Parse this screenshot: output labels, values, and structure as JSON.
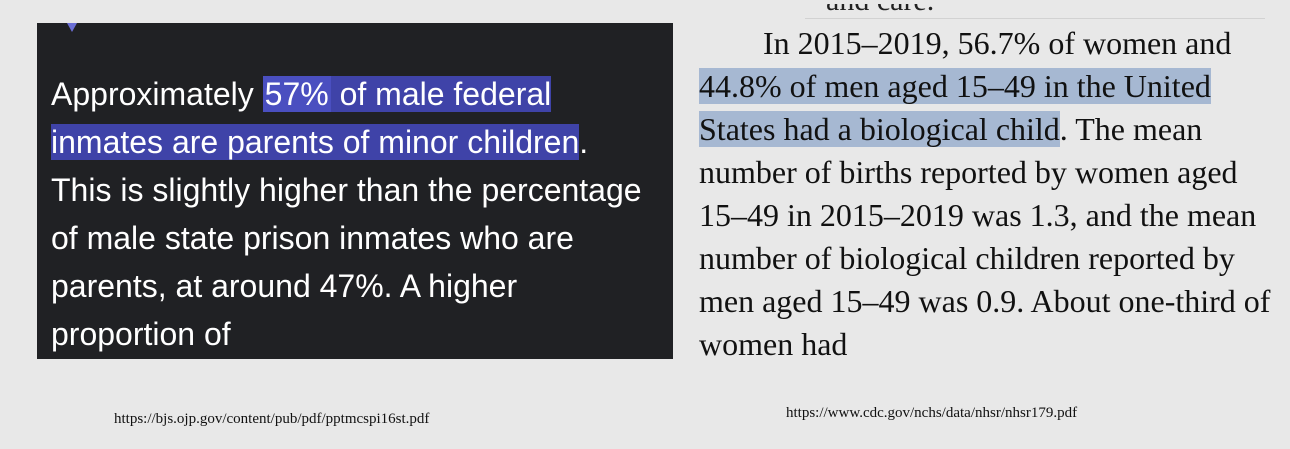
{
  "left_excerpt": {
    "part1": "Approximately ",
    "highlight_pct": "57%",
    "highlight_rest": " of male federal inmates are parents of minor children",
    "rest": ". This is slightly higher than the percentage of male state prison inmates who are parents, at around 47%. A higher proportion of"
  },
  "right_excerpt": {
    "cut_top": "and care.",
    "part1": "In 2015–2019, 56.7% of women and ",
    "highlight": "44.8% of men aged 15–49 in the United States had a biological child",
    "rest": ". The mean number of births reported by women aged 15–49 in 2015–2019 was 1.3, and the mean number of biological children reported by men aged 15–49 was 0.9. About one-third of women had"
  },
  "citations": {
    "left": "https://bjs.ojp.gov/content/pub/pdf/pptmcspi16st.pdf",
    "right": "https://www.cdc.gov/nchs/data/nhsr/nhsr179.pdf"
  },
  "colors": {
    "page_bg": "#e8e8e8",
    "dark_panel_bg": "#202124",
    "dark_highlight": "#3f43a8",
    "light_highlight": "#a6b8d2"
  }
}
